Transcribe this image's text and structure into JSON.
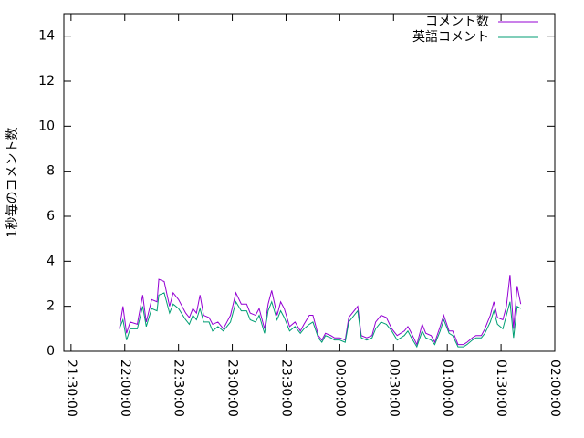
{
  "chart_data": {
    "type": "line",
    "ylabel": "1秒毎のコメント数",
    "x": [
      "21:57:00",
      "21:59:00",
      "22:01:00",
      "22:03:00",
      "22:07:00",
      "22:10:00",
      "22:12:00",
      "22:15:00",
      "22:18:00",
      "22:19:00",
      "22:22:00",
      "22:25:00",
      "22:27:00",
      "22:30:00",
      "22:34:00",
      "22:36:00",
      "22:38:00",
      "22:40:00",
      "22:42:00",
      "22:44:00",
      "22:47:00",
      "22:49:00",
      "22:52:00",
      "22:55:00",
      "22:57:00",
      "22:59:00",
      "23:02:00",
      "23:05:00",
      "23:08:00",
      "23:10:00",
      "23:13:00",
      "23:15:00",
      "23:18:00",
      "23:20:00",
      "23:22:00",
      "23:25:00",
      "23:27:00",
      "23:29:00",
      "23:32:00",
      "23:35:00",
      "23:38:00",
      "23:40:00",
      "23:43:00",
      "23:45:00",
      "23:48:00",
      "23:50:00",
      "23:52:00",
      "23:55:00",
      "23:57:00",
      "00:00:00",
      "00:03:00",
      "00:05:00",
      "00:10:00",
      "00:12:00",
      "00:15:00",
      "00:18:00",
      "00:20:00",
      "00:23:00",
      "00:26:00",
      "00:29:00",
      "00:32:00",
      "00:36:00",
      "00:38:00",
      "00:40:00",
      "00:43:00",
      "00:46:00",
      "00:48:00",
      "00:51:00",
      "00:53:00",
      "00:56:00",
      "00:58:00",
      "01:01:00",
      "01:03:00",
      "01:06:00",
      "01:09:00",
      "01:11:00",
      "01:14:00",
      "01:16:00",
      "01:19:00",
      "01:21:00",
      "01:24:00",
      "01:26:00",
      "01:28:00",
      "01:31:00",
      "01:33:00",
      "01:35:00",
      "01:37:00",
      "01:39:00",
      "01:41:00"
    ],
    "series": [
      {
        "name": "コメント数",
        "color": "#9400d3",
        "values": [
          1.0,
          2.0,
          0.8,
          1.3,
          1.2,
          2.5,
          1.3,
          2.3,
          2.2,
          3.2,
          3.1,
          2.0,
          2.6,
          2.3,
          1.7,
          1.5,
          1.9,
          1.7,
          2.5,
          1.6,
          1.5,
          1.2,
          1.3,
          1.0,
          1.3,
          1.6,
          2.6,
          2.1,
          2.1,
          1.7,
          1.6,
          1.9,
          1.0,
          2.1,
          2.7,
          1.6,
          2.2,
          1.9,
          1.1,
          1.3,
          0.9,
          1.2,
          1.6,
          1.6,
          0.7,
          0.5,
          0.8,
          0.7,
          0.6,
          0.6,
          0.5,
          1.5,
          2.0,
          0.7,
          0.6,
          0.7,
          1.3,
          1.6,
          1.5,
          1.0,
          0.7,
          0.9,
          1.1,
          0.8,
          0.3,
          1.2,
          0.8,
          0.7,
          0.4,
          1.1,
          1.6,
          0.9,
          0.9,
          0.3,
          0.3,
          0.4,
          0.6,
          0.7,
          0.7,
          1.0,
          1.6,
          2.2,
          1.5,
          1.4,
          2.0,
          3.4,
          1.0,
          2.9,
          2.1
        ]
      },
      {
        "name": "英語コメント",
        "color": "#009e73",
        "values": [
          1.0,
          1.4,
          0.5,
          1.0,
          1.0,
          2.0,
          1.1,
          1.9,
          1.8,
          2.5,
          2.6,
          1.7,
          2.1,
          1.9,
          1.4,
          1.2,
          1.6,
          1.4,
          1.9,
          1.3,
          1.3,
          0.9,
          1.1,
          0.9,
          1.1,
          1.3,
          2.2,
          1.8,
          1.8,
          1.4,
          1.3,
          1.6,
          0.8,
          1.8,
          2.2,
          1.4,
          1.8,
          1.5,
          0.9,
          1.1,
          0.8,
          1.0,
          1.2,
          1.3,
          0.6,
          0.4,
          0.7,
          0.6,
          0.5,
          0.5,
          0.4,
          1.3,
          1.8,
          0.6,
          0.5,
          0.6,
          1.0,
          1.3,
          1.2,
          0.9,
          0.5,
          0.7,
          0.9,
          0.6,
          0.2,
          0.9,
          0.6,
          0.5,
          0.3,
          0.9,
          1.4,
          0.8,
          0.7,
          0.2,
          0.2,
          0.3,
          0.5,
          0.6,
          0.6,
          0.8,
          1.3,
          1.8,
          1.2,
          1.0,
          1.6,
          2.2,
          0.6,
          2.0,
          1.9
        ]
      }
    ],
    "xlim": [
      "21:26:00",
      "02:00:00"
    ],
    "xticks": [
      "21:30:00",
      "22:00:00",
      "22:30:00",
      "23:00:00",
      "23:30:00",
      "00:00:00",
      "00:30:00",
      "01:00:00",
      "01:30:00",
      "02:00:00"
    ],
    "ylim": [
      0,
      15
    ],
    "yticks": [
      0,
      2,
      4,
      6,
      8,
      10,
      12,
      14
    ],
    "legend": "top-right",
    "grid": false
  }
}
